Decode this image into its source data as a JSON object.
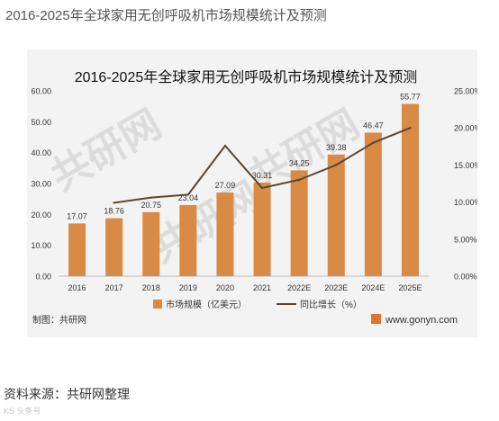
{
  "page": {
    "heading": "2016-2025年全球家用无创呼吸机市场规模统计及预测",
    "source_text": "资料来源：共研网整理",
    "footer_logo": "KS 头条号"
  },
  "figure": {
    "credit": "制图：共研网",
    "site": "www.gonyn.com",
    "watermark": "共研网"
  },
  "chart_data": {
    "type": "bar",
    "title": "2016-2025年全球家用无创呼吸机市场规模统计及预测",
    "categories": [
      "2016",
      "2017",
      "2018",
      "2019",
      "2020",
      "2021",
      "2022E",
      "2023E",
      "2024E",
      "2025E"
    ],
    "series": [
      {
        "name": "市场规模（亿美元）",
        "type": "bar",
        "axis": "left",
        "values": [
          17.07,
          18.76,
          20.75,
          23.04,
          27.09,
          30.31,
          34.25,
          39.38,
          46.47,
          55.77
        ],
        "labels": [
          "17.07",
          "18.76",
          "20.75",
          "23.04",
          "27.09",
          "30.31",
          "34.25",
          "39.38",
          "46.47",
          "55.77"
        ]
      },
      {
        "name": "同比增长（%）",
        "type": "line",
        "axis": "right",
        "values": [
          null,
          9.9,
          10.6,
          11.0,
          17.6,
          11.9,
          13.0,
          15.0,
          18.0,
          20.0
        ]
      }
    ],
    "y_left": {
      "ylim": [
        0,
        60
      ],
      "ticks": [
        "0.00",
        "10.00",
        "20.00",
        "30.00",
        "40.00",
        "50.00",
        "60.00"
      ]
    },
    "y_right": {
      "ylim": [
        0,
        25
      ],
      "ticks": [
        "0.00%",
        "5.00%",
        "10.00%",
        "15.00%",
        "20.00%",
        "25.00%"
      ]
    },
    "legend_position": "bottom",
    "grid": false,
    "colors": {
      "bar": "#d98a45",
      "line": "#5a4632",
      "bg": "#f3f3f3"
    }
  }
}
